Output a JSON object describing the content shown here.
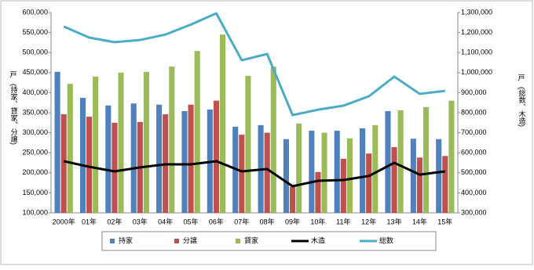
{
  "chart_data": {
    "type": "bar_line",
    "categories": [
      "2000年",
      "01年",
      "02年",
      "03年",
      "04年",
      "05年",
      "06年",
      "07年",
      "08年",
      "09年",
      "10年",
      "11年",
      "12年",
      "13年",
      "14年",
      "15年"
    ],
    "series": [
      {
        "name": "持家",
        "type": "bar",
        "color": "#4f81bd",
        "values": [
          452000,
          387000,
          368000,
          373000,
          370000,
          354000,
          358000,
          315000,
          319000,
          284000,
          305000,
          305000,
          311000,
          354000,
          285000,
          284000
        ]
      },
      {
        "name": "分譲",
        "type": "bar",
        "color": "#c0504d",
        "values": [
          346000,
          340000,
          325000,
          327000,
          346000,
          370000,
          380000,
          295000,
          300000,
          165000,
          202000,
          235000,
          248000,
          264000,
          238000,
          242000
        ]
      },
      {
        "name": "貸家",
        "type": "bar",
        "color": "#9bbb59",
        "values": [
          422000,
          440000,
          450000,
          452000,
          465000,
          504000,
          545000,
          442000,
          465000,
          323000,
          300000,
          286000,
          319000,
          356000,
          364000,
          380000
        ]
      },
      {
        "name": "木造",
        "type": "line",
        "axis": "y2",
        "color": "#000000",
        "values": [
          558000,
          530000,
          507000,
          527000,
          542000,
          542000,
          558000,
          507000,
          519000,
          433000,
          460000,
          464000,
          484000,
          550000,
          491000,
          507000
        ]
      },
      {
        "name": "総数",
        "type": "line",
        "axis": "y2",
        "color": "#4bacc6",
        "values": [
          1230000,
          1175000,
          1152000,
          1163000,
          1190000,
          1240000,
          1296000,
          1062000,
          1093000,
          788000,
          815000,
          835000,
          882000,
          980000,
          894000,
          909000
        ]
      }
    ],
    "y_unit": "戸",
    "ylabel": "(持家、貸家、分譲)",
    "y2_unit": "戸",
    "y2label": "(総数、木造)",
    "ylim": [
      100000,
      600000
    ],
    "yticks": [
      {
        "value": 100000,
        "label": "100,000"
      },
      {
        "value": 150000,
        "label": "150,000"
      },
      {
        "value": 200000,
        "label": "200,000"
      },
      {
        "value": 250000,
        "label": "250,000"
      },
      {
        "value": 300000,
        "label": "300,000"
      },
      {
        "value": 350000,
        "label": "350,000"
      },
      {
        "value": 400000,
        "label": "400,000"
      },
      {
        "value": 450000,
        "label": "450,000"
      },
      {
        "value": 500000,
        "label": "500,000"
      },
      {
        "value": 550000,
        "label": "550,000"
      },
      {
        "value": 600000,
        "label": "600,000"
      }
    ],
    "y2lim": [
      300000,
      1300000
    ],
    "y2ticks": [
      {
        "value": 300000,
        "label": "300,000"
      },
      {
        "value": 400000,
        "label": "400,000"
      },
      {
        "value": 500000,
        "label": "500,000"
      },
      {
        "value": 600000,
        "label": "600,000"
      },
      {
        "value": 700000,
        "label": "700,000"
      },
      {
        "value": 800000,
        "label": "800,000"
      },
      {
        "value": 900000,
        "label": "900,000"
      },
      {
        "value": 1000000,
        "label": "1,000,000"
      },
      {
        "value": 1100000,
        "label": "1,100,000"
      },
      {
        "value": 1200000,
        "label": "1,200,000"
      },
      {
        "value": 1300000,
        "label": "1,300,000"
      }
    ],
    "grid": false,
    "legend": "bottom"
  }
}
